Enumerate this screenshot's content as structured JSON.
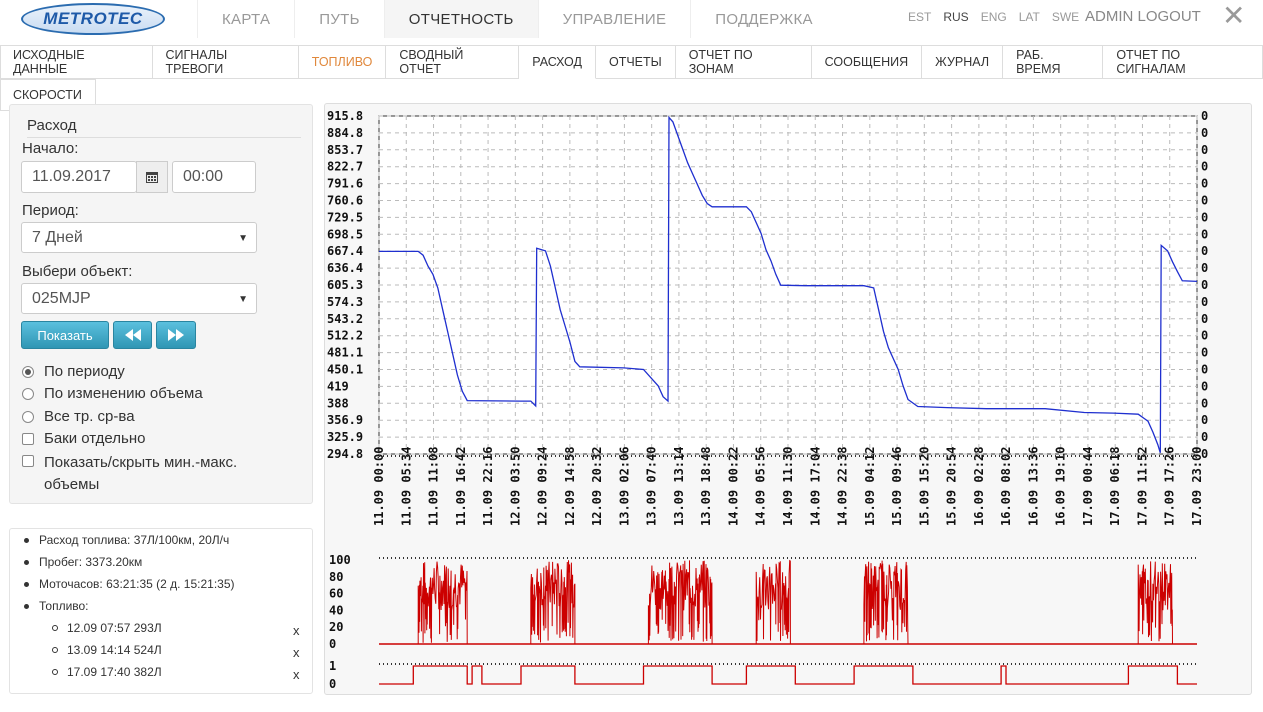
{
  "header": {
    "logo_text": "METROTEC",
    "nav": [
      {
        "label": "КАРТА",
        "active": false
      },
      {
        "label": "ПУТЬ",
        "active": false
      },
      {
        "label": "ОТЧЕТНОСТЬ",
        "active": true
      },
      {
        "label": "УПРАВЛЕНИЕ",
        "active": false
      },
      {
        "label": "ПОДДЕРЖКА",
        "active": false
      }
    ],
    "languages": [
      "EST",
      "RUS",
      "ENG",
      "LAT",
      "SWE"
    ],
    "active_language": "RUS",
    "admin_logout": "ADMIN LOGOUT",
    "close_icon": "close-icon"
  },
  "subtabs": {
    "row1": [
      {
        "label": "ИСХОДНЫЕ ДАННЫЕ"
      },
      {
        "label": "СИГНАЛЫ ТРЕВОГИ"
      },
      {
        "label": "ТОПЛИВО",
        "color": "#e0883c"
      },
      {
        "label": "СВОДНЫЙ ОТЧЕТ"
      },
      {
        "label": "РАСХОД",
        "active": true
      },
      {
        "label": "ОТЧЕТЫ"
      },
      {
        "label": "ОТЧЕТ ПО ЗОНАМ"
      },
      {
        "label": "СООБЩЕНИЯ"
      },
      {
        "label": "ЖУРНАЛ"
      },
      {
        "label": "РАБ. ВРЕМЯ"
      },
      {
        "label": "ОТЧЕТ ПО СИГНАЛАМ"
      }
    ],
    "row2": [
      {
        "label": "СКОРОСТИ"
      }
    ]
  },
  "form": {
    "title": "Расход",
    "start_label": "Начало:",
    "start_date": "11.09.2017",
    "calendar_icon": "calendar-icon",
    "start_time": "00:00",
    "period_label": "Период:",
    "period_value": "7 Дней",
    "object_label": "Выбери объект:",
    "object_value": "025MJP",
    "show_button": "Показать",
    "prev_icon": "rewind-icon",
    "next_icon": "fast-forward-icon",
    "options": [
      {
        "type": "radio",
        "label": "По периоду",
        "checked": true
      },
      {
        "type": "radio",
        "label": "По изменению объема",
        "checked": false
      },
      {
        "type": "radio",
        "label": "Все тр. ср-ва",
        "checked": false
      },
      {
        "type": "checkbox",
        "label": "Баки отдельно",
        "checked": false
      },
      {
        "type": "checkbox",
        "label": "Показать/скрыть мин.-макс. объемы",
        "checked": false
      }
    ]
  },
  "summary": {
    "fuel_consumption": "Расход топлива: 37Л/100км, 20Л/ч",
    "mileage": "Пробег: 3373.20км",
    "engine_hours": "Моточасов: 63:21:35 (2 д. 15:21:35)",
    "fuel_label": "Топливо:",
    "refuels": [
      {
        "text": "12.09 07:57 293Л",
        "remove": "x"
      },
      {
        "text": "13.09 14:14 524Л",
        "remove": "x"
      },
      {
        "text": "17.09 17:40 382Л",
        "remove": "x"
      }
    ]
  },
  "chart_data": [
    {
      "type": "line",
      "series_color": "#1f2fcf",
      "y_ticks": [
        "915.8",
        "884.8",
        "853.7",
        "822.7",
        "791.6",
        "760.6",
        "729.5",
        "698.5",
        "667.4",
        "636.4",
        "605.3",
        "574.3",
        "543.2",
        "512.2",
        "481.1",
        "450.1",
        "419",
        "388",
        "356.9",
        "325.9",
        "294.8"
      ],
      "right_ticks": [
        "0",
        "0",
        "0",
        "0",
        "0",
        "0",
        "0",
        "0",
        "0",
        "0",
        "0",
        "0",
        "0",
        "0",
        "0",
        "0",
        "0",
        "0",
        "0",
        "0",
        "0"
      ],
      "ylim": [
        294.8,
        915.8
      ],
      "x_ticks": [
        "11.09 00:00",
        "11.09 05:34",
        "11.09 11:08",
        "11.09 16:42",
        "11.09 22:16",
        "12.09 03:50",
        "12.09 09:24",
        "12.09 14:58",
        "12.09 20:32",
        "13.09 02:06",
        "13.09 07:40",
        "13.09 13:14",
        "13.09 18:48",
        "14.09 00:22",
        "14.09 05:56",
        "14.09 11:30",
        "14.09 17:04",
        "14.09 22:38",
        "15.09 04:12",
        "15.09 09:46",
        "15.09 15:20",
        "15.09 20:54",
        "16.09 02:28",
        "16.09 08:02",
        "16.09 13:36",
        "16.09 19:10",
        "17.09 00:44",
        "17.09 06:18",
        "17.09 11:52",
        "17.09 17:26",
        "17.09 23:00"
      ],
      "xlim_hours": [
        0,
        167
      ],
      "points": [
        [
          0,
          667
        ],
        [
          8,
          667
        ],
        [
          9,
          660
        ],
        [
          10,
          640
        ],
        [
          11,
          625
        ],
        [
          12,
          600
        ],
        [
          13,
          560
        ],
        [
          14,
          520
        ],
        [
          15,
          480
        ],
        [
          16,
          440
        ],
        [
          17,
          410
        ],
        [
          18,
          393
        ],
        [
          29,
          392
        ],
        [
          31,
          392
        ],
        [
          32,
          383
        ],
        [
          32.2,
          673
        ],
        [
          34,
          668
        ],
        [
          35,
          640
        ],
        [
          36,
          600
        ],
        [
          37,
          560
        ],
        [
          38,
          530
        ],
        [
          39,
          500
        ],
        [
          40,
          465
        ],
        [
          41,
          455
        ],
        [
          50,
          453
        ],
        [
          54,
          450
        ],
        [
          57,
          420
        ],
        [
          58,
          400
        ],
        [
          59,
          392
        ],
        [
          59.2,
          913
        ],
        [
          60,
          905
        ],
        [
          61,
          880
        ],
        [
          62,
          855
        ],
        [
          63,
          830
        ],
        [
          64,
          810
        ],
        [
          65,
          790
        ],
        [
          66,
          770
        ],
        [
          67,
          755
        ],
        [
          68,
          749
        ],
        [
          75,
          749
        ],
        [
          76,
          740
        ],
        [
          78,
          700
        ],
        [
          79,
          670
        ],
        [
          80,
          650
        ],
        [
          81,
          625
        ],
        [
          82,
          605
        ],
        [
          87,
          604
        ],
        [
          99,
          604
        ],
        [
          101,
          600
        ],
        [
          102,
          560
        ],
        [
          103,
          520
        ],
        [
          104,
          490
        ],
        [
          105,
          470
        ],
        [
          106,
          450
        ],
        [
          107,
          420
        ],
        [
          108,
          395
        ],
        [
          110,
          382
        ],
        [
          116,
          380
        ],
        [
          124,
          378
        ],
        [
          136,
          378
        ],
        [
          144,
          371
        ],
        [
          150,
          370
        ],
        [
          155,
          368
        ],
        [
          157,
          355
        ],
        [
          158,
          335
        ],
        [
          159,
          312
        ],
        [
          159.5,
          297
        ],
        [
          159.7,
          678
        ],
        [
          161,
          668
        ],
        [
          162,
          648
        ],
        [
          163,
          630
        ],
        [
          164,
          613
        ],
        [
          167,
          612
        ]
      ]
    },
    {
      "type": "area",
      "series_color": "#cc0000",
      "y_ticks": [
        "100",
        "80",
        "60",
        "40",
        "20",
        "0"
      ],
      "ylim": [
        0,
        100
      ],
      "active_intervals_hours": [
        [
          8,
          18
        ],
        [
          31,
          40
        ],
        [
          55,
          68
        ],
        [
          77,
          84
        ],
        [
          99,
          108
        ],
        [
          155,
          162
        ]
      ]
    },
    {
      "type": "line",
      "series_color": "#cc0000",
      "y_ticks": [
        "1",
        "0"
      ],
      "ylim": [
        0,
        1
      ],
      "on_intervals_hours": [
        [
          7,
          18
        ],
        [
          19,
          21
        ],
        [
          29,
          40
        ],
        [
          54,
          68
        ],
        [
          75,
          85
        ],
        [
          97,
          109
        ],
        [
          127,
          128
        ],
        [
          153,
          163
        ]
      ]
    }
  ]
}
